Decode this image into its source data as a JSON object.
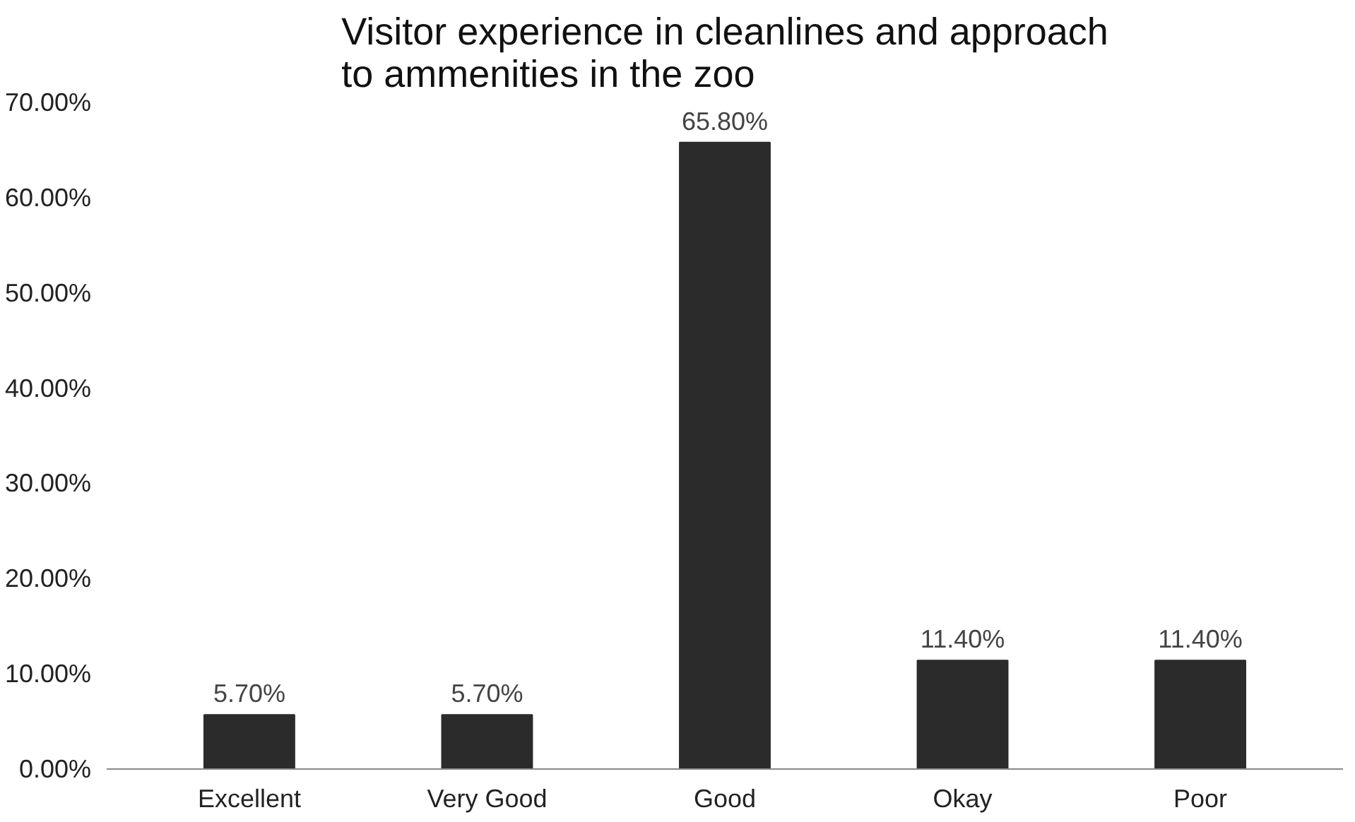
{
  "chart_data": {
    "type": "bar",
    "title": "Visitor experience in cleanlines and approach\nto ammenities in the zoo",
    "categories": [
      "Excellent",
      "Very Good",
      "Good",
      "Okay",
      "Poor"
    ],
    "values": [
      5.7,
      5.7,
      65.8,
      11.4,
      11.4
    ],
    "value_labels": [
      "5.70%",
      "5.70%",
      "65.80%",
      "11.40%",
      "11.40%"
    ],
    "color": "#2b2b2b",
    "ylim": [
      0,
      70
    ],
    "yticks": [
      {
        "value": 0,
        "label": "0.00%"
      },
      {
        "value": 10,
        "label": "10.00%"
      },
      {
        "value": 20,
        "label": "20.00%"
      },
      {
        "value": 30,
        "label": "30.00%"
      },
      {
        "value": 40,
        "label": "40.00%"
      },
      {
        "value": 50,
        "label": "50.00%"
      },
      {
        "value": 60,
        "label": "60.00%"
      },
      {
        "value": 70,
        "label": "70.00%"
      }
    ],
    "grid": false
  }
}
